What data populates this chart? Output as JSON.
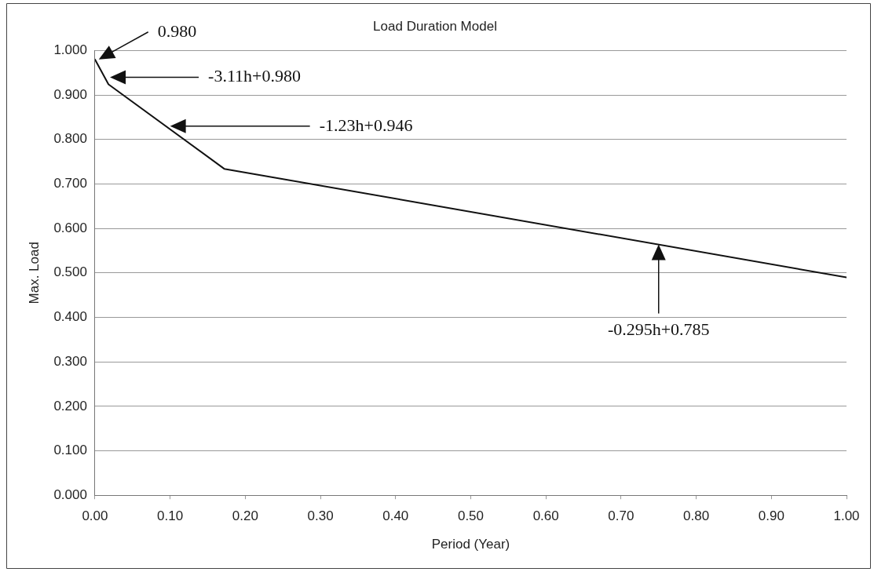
{
  "chart_data": {
    "type": "line",
    "title": "Load Duration Model",
    "xlabel": "Period (Year)",
    "ylabel": "Max. Load",
    "x": [
      0,
      0.018,
      0.172,
      1.0
    ],
    "series": [
      {
        "color": "#111111",
        "values": [
          0.98,
          0.924,
          0.734,
          0.49
        ]
      }
    ],
    "xlim": [
      0,
      1
    ],
    "xticks": [
      {
        "value": 0,
        "label": "0.00"
      },
      {
        "value": 0.1,
        "label": "0.10"
      },
      {
        "value": 0.2,
        "label": "0.20"
      },
      {
        "value": 0.3,
        "label": "0.30"
      },
      {
        "value": 0.4,
        "label": "0.40"
      },
      {
        "value": 0.5,
        "label": "0.50"
      },
      {
        "value": 0.6,
        "label": "0.60"
      },
      {
        "value": 0.7,
        "label": "0.70"
      },
      {
        "value": 0.8,
        "label": "0.80"
      },
      {
        "value": 0.9,
        "label": "0.90"
      },
      {
        "value": 1,
        "label": "1.00"
      }
    ],
    "ylim": [
      0,
      1
    ],
    "yticks": [
      {
        "value": 0,
        "label": "0.000"
      },
      {
        "value": 0.1,
        "label": "0.100"
      },
      {
        "value": 0.2,
        "label": "0.200"
      },
      {
        "value": 0.3,
        "label": "0.300"
      },
      {
        "value": 0.4,
        "label": "0.400"
      },
      {
        "value": 0.5,
        "label": "0.500"
      },
      {
        "value": 0.6,
        "label": "0.600"
      },
      {
        "value": 0.7,
        "label": "0.700"
      },
      {
        "value": 0.8,
        "label": "0.800"
      },
      {
        "value": 0.9,
        "label": "0.900"
      },
      {
        "value": 1,
        "label": "1.000"
      }
    ],
    "grid": "y",
    "legend": false,
    "marker": "none",
    "line_style": "solid",
    "annotations": [
      "0.980",
      "-3.11h+0.980",
      "-1.23h+0.946",
      "-0.295h+0.785"
    ]
  }
}
